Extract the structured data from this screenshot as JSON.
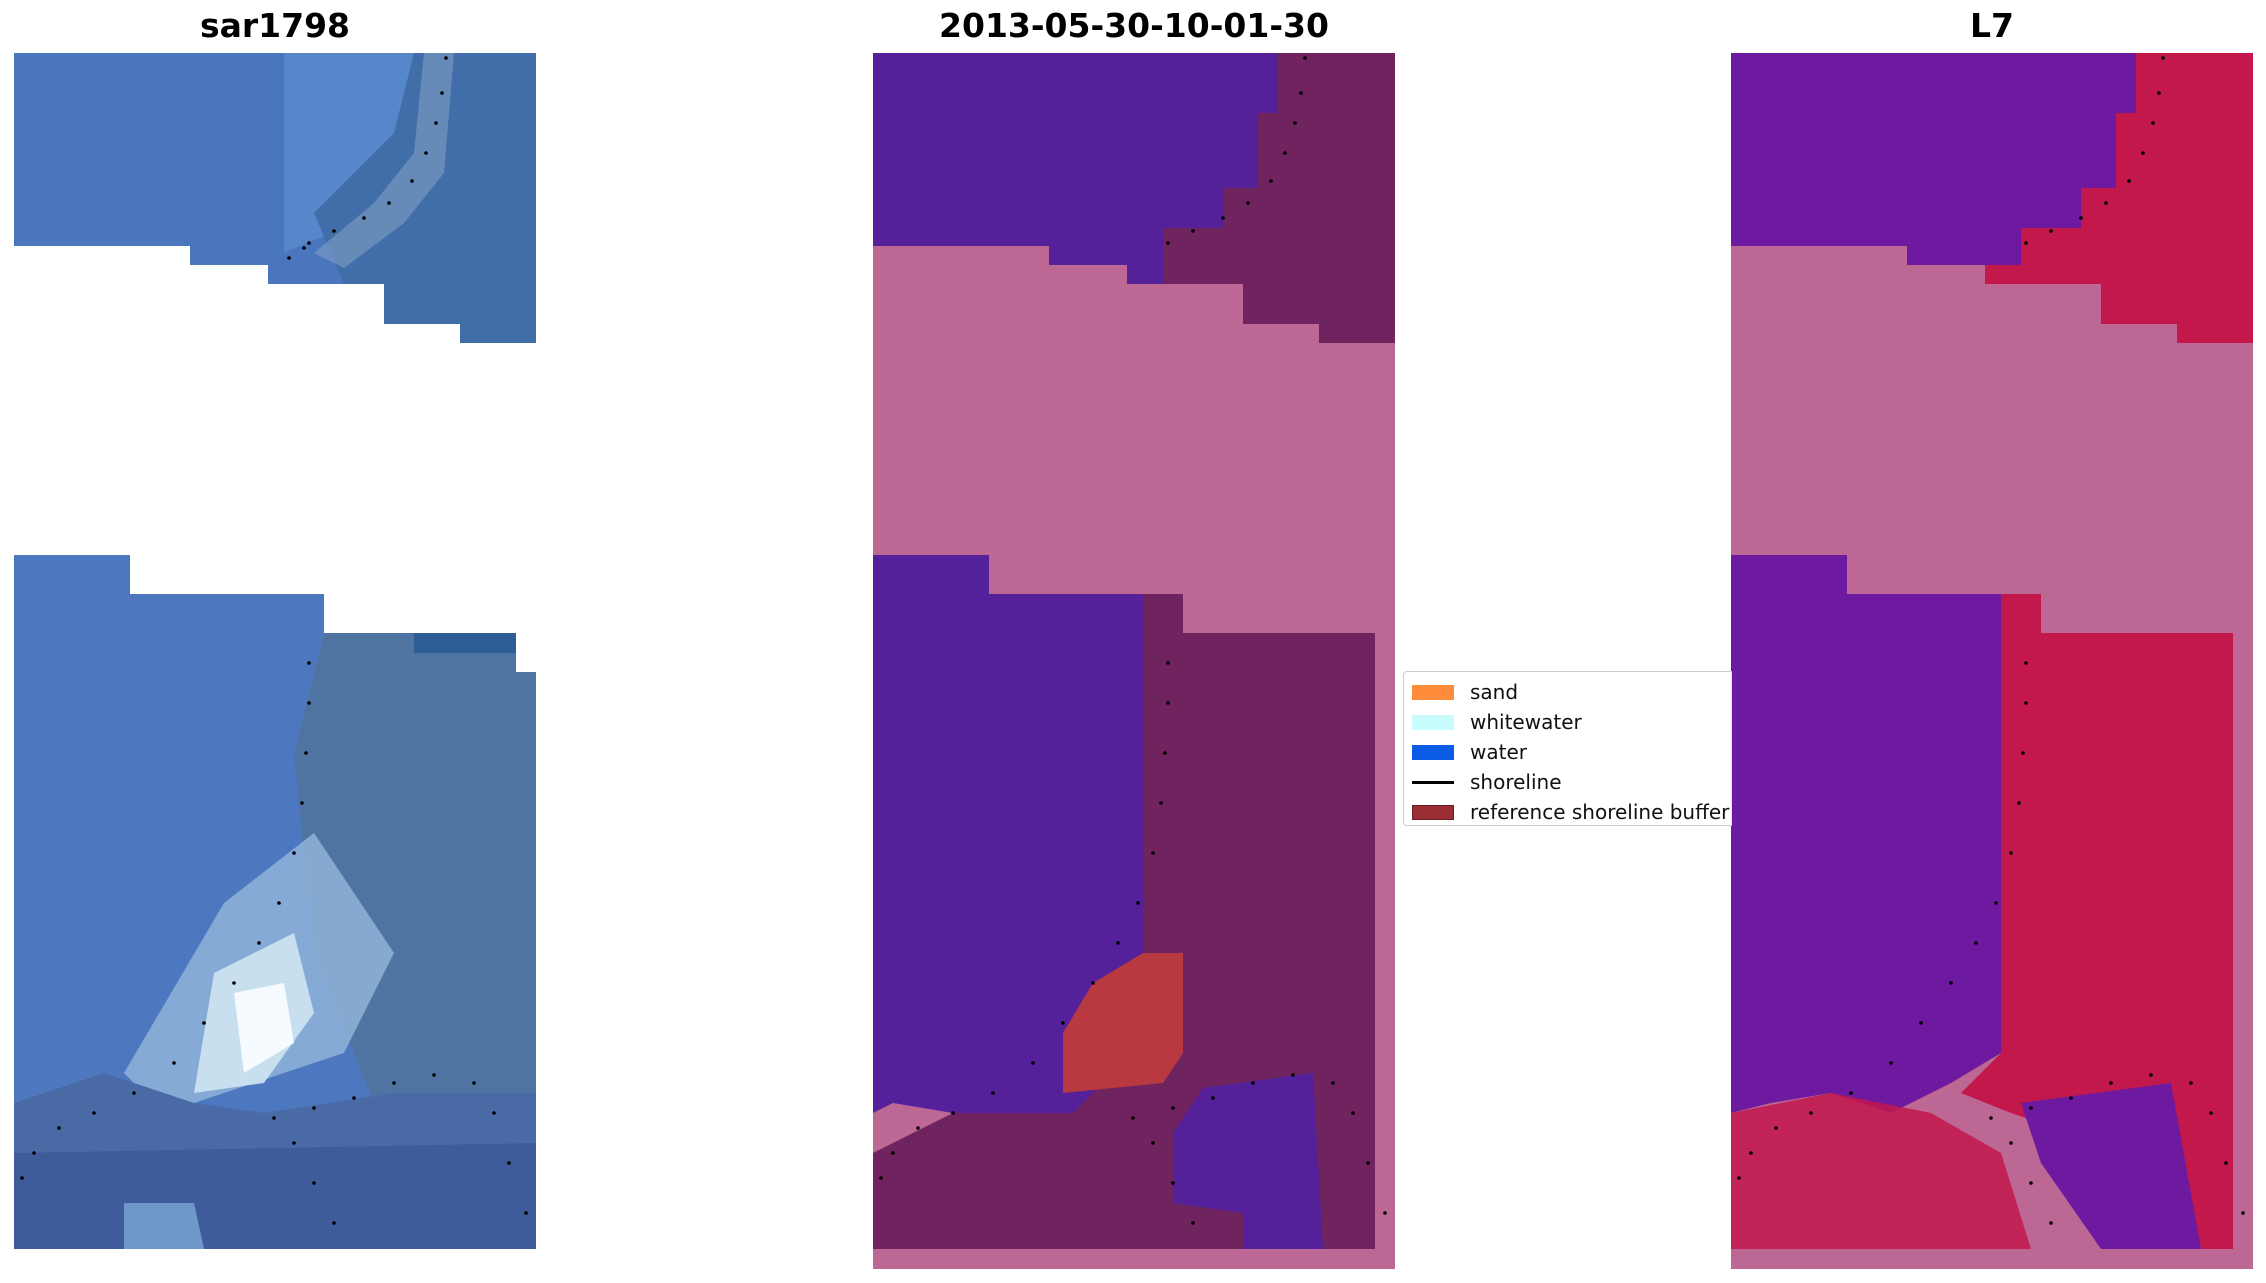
{
  "panels": [
    {
      "title": "sar1798"
    },
    {
      "title": "2013-05-30-10-01-30"
    },
    {
      "title": "L7"
    }
  ],
  "legend": {
    "items": [
      {
        "label": "sand",
        "color": "#ff8c3a"
      },
      {
        "label": "whitewater",
        "color": "#c9fdfd"
      },
      {
        "label": "water",
        "color": "#0a5ce6"
      },
      {
        "label": "shoreline",
        "color": "#000000"
      },
      {
        "label": "reference shoreline buffer",
        "color": "#9b2e35"
      }
    ]
  },
  "colors": {
    "rgb_water": "#4a7fc4",
    "class_water": "#54219a",
    "class_sand_overlay": "#b83a40",
    "buffer_mask": "#bd6795",
    "land_class": "#6f2460",
    "mndwi_low": "#6d1aa0",
    "mndwi_high": "#c2184c"
  }
}
